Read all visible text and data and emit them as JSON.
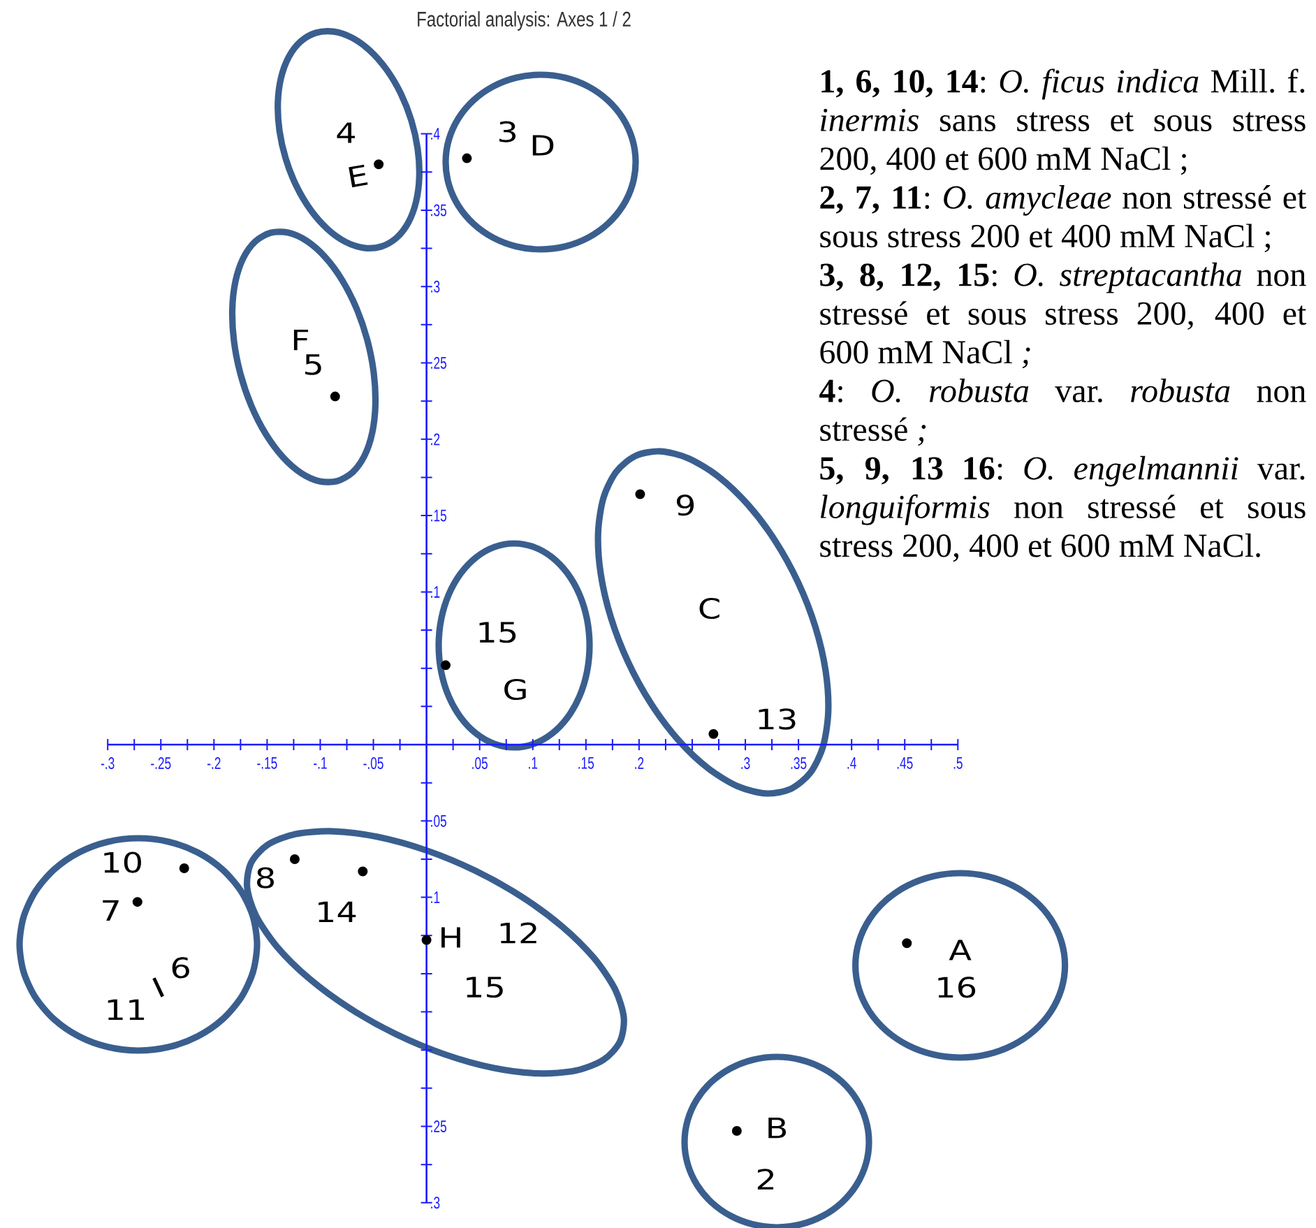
{
  "chart_data": {
    "type": "scatter",
    "title": "Factorial analysis: Axes 1 / 2",
    "annotations": [
      "**1, 6, 10, 14**: *O. ficus indica* Mill. f. *inermis* sans stress et sous stress 200, 400 et 600 mM NaCl ;",
      "**2, 7, 11**: *O. amycleae* non stressé et sous stress 200 et 400 mM NaCl ;",
      "**3, 8, 12, 15**: *O. streptacantha* non stressé et sous stress 200, 400 et 600 mM NaCl *;*",
      "**4**: *O. robusta* var. *robusta* non stressé *;*",
      "**5, 9, 13 16**: *O. engelmannii* var. *longuiformis* non stressé et sous stress 200, 400 et 600 mM NaCl.",
      "4",
      "E",
      "3",
      "D",
      "F",
      "5",
      "9",
      "C",
      "13",
      "15",
      "G",
      "10",
      "7",
      "6",
      "I",
      "11",
      "8",
      "14",
      "H",
      "12",
      "15",
      "A",
      "16",
      "B",
      "2"
    ],
    "xlim": [
      -0.3,
      0.5
    ],
    "ylim": [
      -0.3,
      0.4
    ],
    "xticks": [
      {
        "value": -0.3,
        "label": "-.3"
      },
      {
        "value": -0.275,
        "label": null
      },
      {
        "value": -0.25,
        "label": "-.25"
      },
      {
        "value": -0.225,
        "label": null
      },
      {
        "value": -0.2,
        "label": "-.2"
      },
      {
        "value": -0.175,
        "label": null
      },
      {
        "value": -0.15,
        "label": "-.15"
      },
      {
        "value": -0.125,
        "label": null
      },
      {
        "value": -0.1,
        "label": "-.1"
      },
      {
        "value": -0.075,
        "label": null
      },
      {
        "value": -0.05,
        "label": "-.05"
      },
      {
        "value": -0.025,
        "label": null
      },
      {
        "value": 0,
        "label": null
      },
      {
        "value": 0.025,
        "label": null
      },
      {
        "value": 0.05,
        "label": ".05"
      },
      {
        "value": 0.075,
        "label": null
      },
      {
        "value": 0.1,
        "label": ".1"
      },
      {
        "value": 0.125,
        "label": null
      },
      {
        "value": 0.15,
        "label": ".15"
      },
      {
        "value": 0.175,
        "label": null
      },
      {
        "value": 0.2,
        "label": ".2"
      },
      {
        "value": 0.225,
        "label": null
      },
      {
        "value": 0.25,
        "label": null
      },
      {
        "value": 0.275,
        "label": null
      },
      {
        "value": 0.3,
        "label": ".3"
      },
      {
        "value": 0.325,
        "label": null
      },
      {
        "value": 0.35,
        "label": ".35"
      },
      {
        "value": 0.4,
        "label": ".4"
      },
      {
        "value": 0.425,
        "label": null
      },
      {
        "value": 0.45,
        "label": ".45"
      },
      {
        "value": 0.475,
        "label": null
      },
      {
        "value": 0.5,
        "label": ".5"
      }
    ],
    "yticks": [
      {
        "value": -0.3,
        "label": ".3"
      },
      {
        "value": -0.275,
        "label": null
      },
      {
        "value": -0.25,
        "label": ".25"
      },
      {
        "value": -0.225,
        "label": null
      },
      {
        "value": -0.2,
        "label": null
      },
      {
        "value": -0.175,
        "label": null
      },
      {
        "value": -0.15,
        "label": null
      },
      {
        "value": -0.125,
        "label": null
      },
      {
        "value": -0.1,
        "label": ".1"
      },
      {
        "value": -0.075,
        "label": null
      },
      {
        "value": -0.05,
        "label": ".05"
      },
      {
        "value": -0.025,
        "label": null
      },
      {
        "value": 0,
        "label": null
      },
      {
        "value": 0.025,
        "label": null
      },
      {
        "value": 0.05,
        "label": null
      },
      {
        "value": 0.075,
        "label": null
      },
      {
        "value": 0.1,
        "label": ".1"
      },
      {
        "value": 0.125,
        "label": null
      },
      {
        "value": 0.15,
        "label": ".15"
      },
      {
        "value": 0.175,
        "label": null
      },
      {
        "value": 0.2,
        "label": ".2"
      },
      {
        "value": 0.225,
        "label": null
      },
      {
        "value": 0.25,
        "label": ".25"
      },
      {
        "value": 0.275,
        "label": null
      },
      {
        "value": 0.3,
        "label": ".3"
      },
      {
        "value": 0.325,
        "label": null
      },
      {
        "value": 0.35,
        "label": ".35"
      },
      {
        "value": 0.375,
        "label": null
      },
      {
        "value": 0.4,
        "label": ".4"
      }
    ],
    "series": [
      {
        "color": "#000000",
        "marker": "circle",
        "x": [
          -0.045,
          0.038,
          -0.086,
          0.201,
          0.27,
          0.018,
          -0.228,
          -0.272,
          -0.124,
          -0.06,
          0.0,
          0.452,
          0.292
        ],
        "values": [
          0.38,
          0.384,
          0.228,
          0.164,
          0.007,
          0.052,
          -0.081,
          -0.103,
          -0.075,
          -0.083,
          -0.128,
          -0.13,
          -0.253
        ]
      }
    ]
  }
}
